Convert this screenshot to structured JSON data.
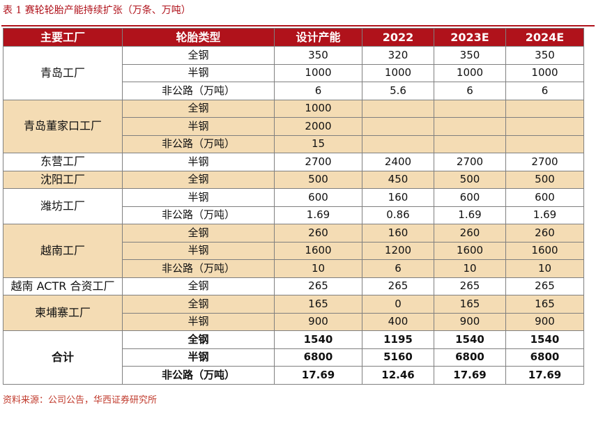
{
  "title": "表 1 赛轮轮胎产能持续扩张（万条、万吨）",
  "headers": [
    "主要工厂",
    "轮胎类型",
    "设计产能",
    "2022",
    "2023E",
    "2024E"
  ],
  "groups": [
    {
      "factory": "青岛工厂",
      "shaded": false,
      "rows": [
        [
          "全钢",
          "350",
          "320",
          "350",
          "350"
        ],
        [
          "半钢",
          "1000",
          "1000",
          "1000",
          "1000"
        ],
        [
          "非公路（万吨）",
          "6",
          "5.6",
          "6",
          "6"
        ]
      ]
    },
    {
      "factory": "青岛董家口工厂",
      "shaded": true,
      "rows": [
        [
          "全钢",
          "1000",
          "",
          "",
          ""
        ],
        [
          "半钢",
          "2000",
          "",
          "",
          ""
        ],
        [
          "非公路（万吨）",
          "15",
          "",
          "",
          ""
        ]
      ]
    },
    {
      "factory": "东营工厂",
      "shaded": false,
      "rows": [
        [
          "半钢",
          "2700",
          "2400",
          "2700",
          "2700"
        ]
      ]
    },
    {
      "factory": "沈阳工厂",
      "shaded": true,
      "rows": [
        [
          "全钢",
          "500",
          "450",
          "500",
          "500"
        ]
      ]
    },
    {
      "factory": "潍坊工厂",
      "shaded": false,
      "rows": [
        [
          "半钢",
          "600",
          "160",
          "600",
          "600"
        ],
        [
          "非公路（万吨）",
          "1.69",
          "0.86",
          "1.69",
          "1.69"
        ]
      ]
    },
    {
      "factory": "越南工厂",
      "shaded": true,
      "rows": [
        [
          "全钢",
          "260",
          "160",
          "260",
          "260"
        ],
        [
          "半钢",
          "1600",
          "1200",
          "1600",
          "1600"
        ],
        [
          "非公路（万吨）",
          "10",
          "6",
          "10",
          "10"
        ]
      ]
    },
    {
      "factory": "越南 ACTR 合资工厂",
      "shaded": false,
      "rows": [
        [
          "全钢",
          "265",
          "265",
          "265",
          "265"
        ]
      ]
    },
    {
      "factory": "柬埔寨工厂",
      "shaded": true,
      "rows": [
        [
          "全钢",
          "165",
          "0",
          "165",
          "165"
        ],
        [
          "半钢",
          "900",
          "400",
          "900",
          "900"
        ]
      ]
    }
  ],
  "total": {
    "label": "合计",
    "rows": [
      [
        "全钢",
        "1540",
        "1195",
        "1540",
        "1540"
      ],
      [
        "半钢",
        "6800",
        "5160",
        "6800",
        "6800"
      ],
      [
        "非公路（万吨）",
        "17.69",
        "12.46",
        "17.69",
        "17.69"
      ]
    ]
  },
  "source": "资料来源：公司公告，华西证券研究所",
  "colors": {
    "accent": "#b0121b",
    "shade": "#f4dcb4"
  }
}
